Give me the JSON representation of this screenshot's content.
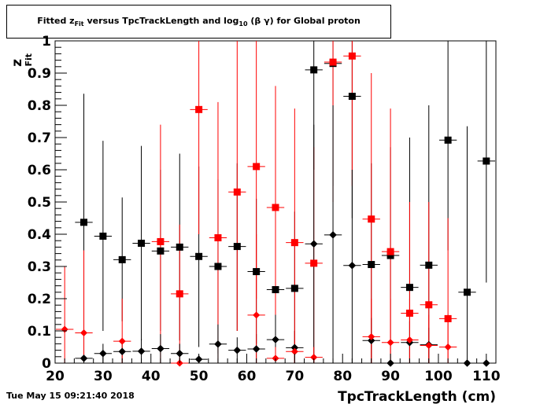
{
  "title": {
    "prefix": "Fitted  z",
    "sub1": "Fit",
    "middle": "  versus TpcTrackLength and log",
    "sub2": "10",
    "suffix": " (β γ) for Global proton"
  },
  "timestamp": "Tue May 15 09:21:40 2018",
  "chart_data": {
    "type": "scatter",
    "xlabel": "TpcTrackLength (cm)",
    "ylabel": "z",
    "ylabel_sub": "Fit",
    "xlim": [
      20,
      112
    ],
    "ylim": [
      0,
      1
    ],
    "x_ticks": [
      20,
      30,
      40,
      50,
      60,
      70,
      80,
      90,
      100,
      110
    ],
    "y_ticks": [
      0,
      0.1,
      0.2,
      0.3,
      0.4,
      0.5,
      0.6,
      0.7,
      0.8,
      0.9,
      1
    ],
    "y_tick_labels": [
      "0",
      "0.1",
      "0.2",
      "0.3",
      "0.4",
      "0.5",
      "0.6",
      "0.7",
      "0.8",
      "0.9",
      "1"
    ],
    "series": [
      {
        "color": "#000000",
        "marker": "square",
        "points": [
          {
            "x": 26,
            "y": 0.437,
            "lo": 0.0,
            "hi": 0.836
          },
          {
            "x": 30,
            "y": 0.394,
            "lo": 0.1,
            "hi": 0.69
          },
          {
            "x": 34,
            "y": 0.321,
            "lo": 0.13,
            "hi": 0.514
          },
          {
            "x": 38,
            "y": 0.372,
            "lo": 0.07,
            "hi": 0.674
          },
          {
            "x": 42,
            "y": 0.348,
            "lo": 0.1,
            "hi": 0.6
          },
          {
            "x": 46,
            "y": 0.36,
            "lo": 0.07,
            "hi": 0.65
          },
          {
            "x": 50,
            "y": 0.331,
            "lo": 0.05,
            "hi": 0.61
          },
          {
            "x": 54,
            "y": 0.3,
            "lo": 0.03,
            "hi": 0.57
          },
          {
            "x": 58,
            "y": 0.362,
            "lo": 0.1,
            "hi": 0.62
          },
          {
            "x": 62,
            "y": 0.284,
            "lo": 0.06,
            "hi": 0.51
          },
          {
            "x": 66,
            "y": 0.228,
            "lo": 0.0,
            "hi": 0.47
          },
          {
            "x": 70,
            "y": 0.232,
            "lo": 0.0,
            "hi": 0.47
          },
          {
            "x": 74,
            "y": 0.91,
            "lo": 0.6,
            "hi": 1.0
          },
          {
            "x": 78,
            "y": 0.93,
            "lo": 0.55,
            "hi": 1.0
          },
          {
            "x": 82,
            "y": 0.828,
            "lo": 0.45,
            "hi": 1.0
          },
          {
            "x": 86,
            "y": 0.306,
            "lo": 0.0,
            "hi": 0.62
          },
          {
            "x": 90,
            "y": 0.334,
            "lo": 0.0,
            "hi": 0.67
          },
          {
            "x": 94,
            "y": 0.235,
            "lo": 0.0,
            "hi": 0.7
          },
          {
            "x": 98,
            "y": 0.304,
            "lo": 0.0,
            "hi": 0.8
          },
          {
            "x": 102,
            "y": 0.692,
            "lo": 0.35,
            "hi": 1.0
          },
          {
            "x": 106,
            "y": 0.22,
            "lo": 0.0,
            "hi": 0.735
          },
          {
            "x": 110,
            "y": 0.627,
            "lo": 0.25,
            "hi": 1.0
          }
        ]
      },
      {
        "color": "#ff0000",
        "marker": "square",
        "points": [
          {
            "x": 42,
            "y": 0.377,
            "lo": 0.0,
            "hi": 0.74
          },
          {
            "x": 46,
            "y": 0.215,
            "lo": 0.0,
            "hi": 0.43
          },
          {
            "x": 50,
            "y": 0.787,
            "lo": 0.4,
            "hi": 1.0
          },
          {
            "x": 54,
            "y": 0.389,
            "lo": 0.0,
            "hi": 0.81
          },
          {
            "x": 58,
            "y": 0.531,
            "lo": 0.1,
            "hi": 1.0
          },
          {
            "x": 62,
            "y": 0.61,
            "lo": 0.2,
            "hi": 1.0
          },
          {
            "x": 66,
            "y": 0.483,
            "lo": 0.1,
            "hi": 0.86
          },
          {
            "x": 70,
            "y": 0.374,
            "lo": 0.0,
            "hi": 0.79
          },
          {
            "x": 74,
            "y": 0.31,
            "lo": 0.0,
            "hi": 0.67
          },
          {
            "x": 78,
            "y": 0.934,
            "lo": 0.5,
            "hi": 1.0
          },
          {
            "x": 82,
            "y": 0.953,
            "lo": 0.55,
            "hi": 1.0
          },
          {
            "x": 86,
            "y": 0.447,
            "lo": 0.0,
            "hi": 0.9
          },
          {
            "x": 90,
            "y": 0.346,
            "lo": 0.0,
            "hi": 0.79
          },
          {
            "x": 94,
            "y": 0.155,
            "lo": 0.0,
            "hi": 0.5
          },
          {
            "x": 98,
            "y": 0.181,
            "lo": 0.0,
            "hi": 0.5
          },
          {
            "x": 102,
            "y": 0.138,
            "lo": 0.0,
            "hi": 0.45
          }
        ]
      },
      {
        "color": "#000000",
        "marker": "diamond",
        "points": [
          {
            "x": 26,
            "y": 0.015,
            "lo": 0.0,
            "hi": 0.03
          },
          {
            "x": 30,
            "y": 0.03,
            "lo": 0.0,
            "hi": 0.06
          },
          {
            "x": 34,
            "y": 0.036,
            "lo": 0.0,
            "hi": 0.07
          },
          {
            "x": 38,
            "y": 0.037,
            "lo": 0.0,
            "hi": 0.075
          },
          {
            "x": 42,
            "y": 0.045,
            "lo": 0.0,
            "hi": 0.09
          },
          {
            "x": 46,
            "y": 0.03,
            "lo": 0.0,
            "hi": 0.06
          },
          {
            "x": 50,
            "y": 0.012,
            "lo": 0.0,
            "hi": 0.025
          },
          {
            "x": 54,
            "y": 0.059,
            "lo": 0.0,
            "hi": 0.12
          },
          {
            "x": 58,
            "y": 0.04,
            "lo": 0.0,
            "hi": 0.08
          },
          {
            "x": 62,
            "y": 0.044,
            "lo": 0.0,
            "hi": 0.09
          },
          {
            "x": 66,
            "y": 0.073,
            "lo": 0.0,
            "hi": 0.15
          },
          {
            "x": 70,
            "y": 0.048,
            "lo": 0.0,
            "hi": 0.1
          },
          {
            "x": 74,
            "y": 0.37,
            "lo": 0.0,
            "hi": 0.74
          },
          {
            "x": 78,
            "y": 0.398,
            "lo": 0.0,
            "hi": 0.8
          },
          {
            "x": 82,
            "y": 0.303,
            "lo": 0.0,
            "hi": 0.6
          },
          {
            "x": 86,
            "y": 0.07,
            "lo": 0.0,
            "hi": 0.14
          },
          {
            "x": 90,
            "y": 0.0,
            "lo": 0.0,
            "hi": 0.0
          },
          {
            "x": 94,
            "y": 0.064,
            "lo": 0.0,
            "hi": 0.13
          },
          {
            "x": 98,
            "y": 0.057,
            "lo": 0.0,
            "hi": 0.11
          },
          {
            "x": 106,
            "y": 0.0,
            "lo": 0.0,
            "hi": 0.0
          },
          {
            "x": 110,
            "y": 0.0,
            "lo": 0.0,
            "hi": 0.0
          }
        ]
      },
      {
        "color": "#ff0000",
        "marker": "diamond",
        "points": [
          {
            "x": 22,
            "y": 0.105,
            "lo": 0.0,
            "hi": 0.3
          },
          {
            "x": 26,
            "y": 0.094,
            "lo": 0.0,
            "hi": 0.35
          },
          {
            "x": 34,
            "y": 0.068,
            "lo": 0.0,
            "hi": 0.2
          },
          {
            "x": 46,
            "y": 0.0,
            "lo": 0.0,
            "hi": 0.0
          },
          {
            "x": 62,
            "y": 0.149,
            "lo": 0.0,
            "hi": 0.4
          },
          {
            "x": 66,
            "y": 0.015,
            "lo": 0.0,
            "hi": 0.05
          },
          {
            "x": 70,
            "y": 0.036,
            "lo": 0.0,
            "hi": 0.1
          },
          {
            "x": 74,
            "y": 0.018,
            "lo": 0.0,
            "hi": 0.05
          },
          {
            "x": 86,
            "y": 0.082,
            "lo": 0.0,
            "hi": 0.2
          },
          {
            "x": 90,
            "y": 0.064,
            "lo": 0.0,
            "hi": 0.2
          },
          {
            "x": 94,
            "y": 0.072,
            "lo": 0.0,
            "hi": 0.2
          },
          {
            "x": 98,
            "y": 0.055,
            "lo": 0.0,
            "hi": 0.15
          },
          {
            "x": 102,
            "y": 0.05,
            "lo": 0.0,
            "hi": 0.15
          }
        ]
      }
    ]
  }
}
